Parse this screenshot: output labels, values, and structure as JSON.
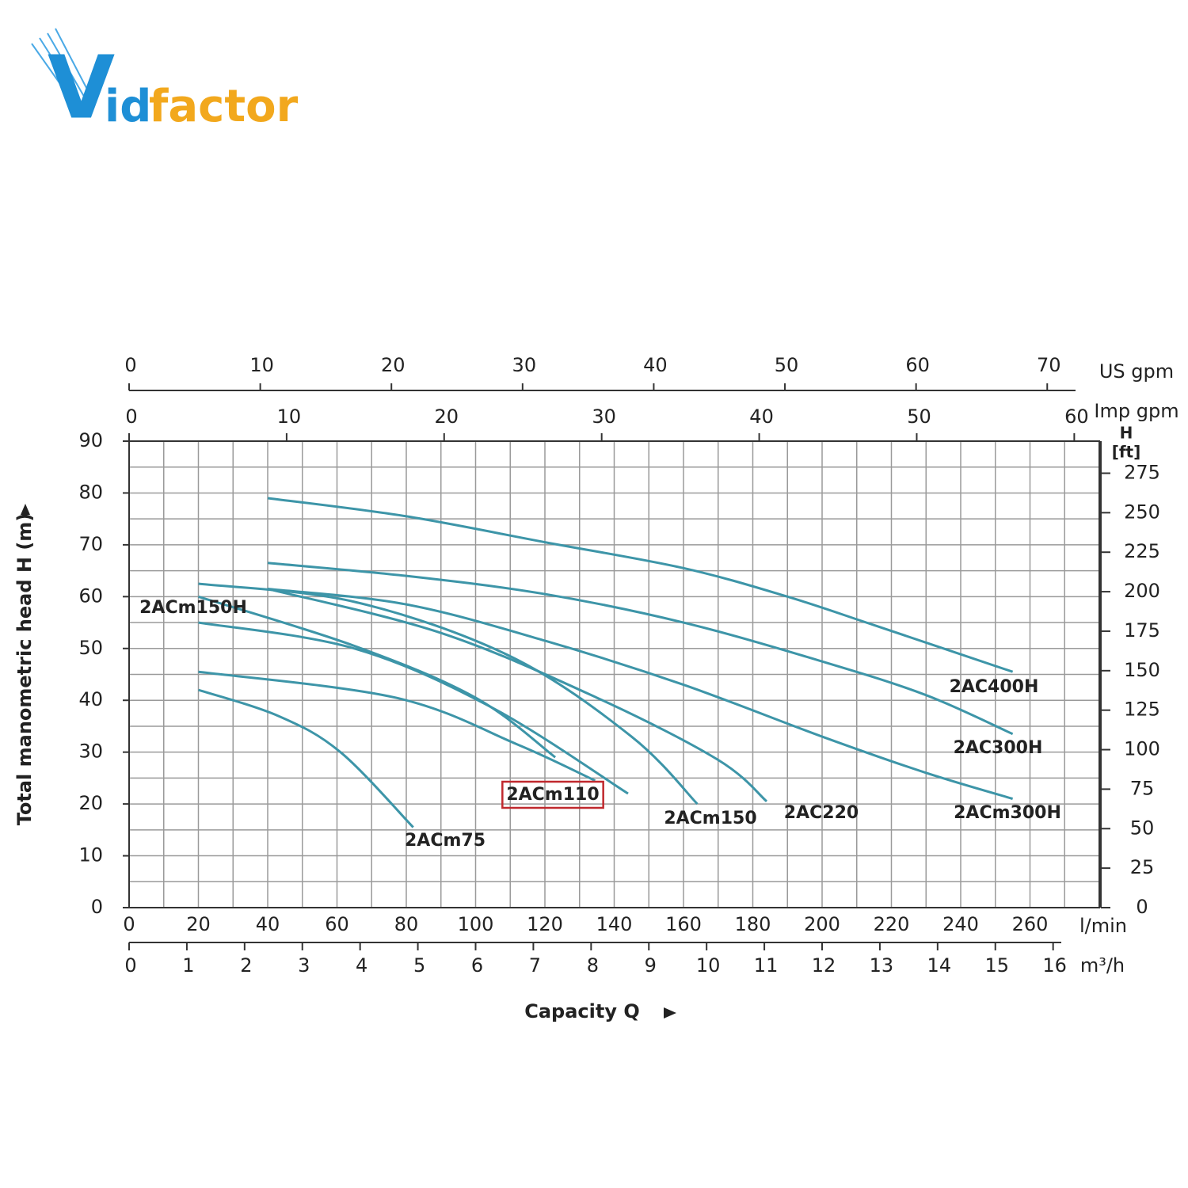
{
  "logo": [
    "V",
    "id",
    "factor"
  ],
  "chart_data": {
    "type": "line",
    "y_title": "Total manometric head H (m)",
    "x_title": "Capacity Q",
    "x_unit": "l/min",
    "xlim": [
      0,
      280
    ],
    "xticks": [
      0,
      20,
      40,
      60,
      80,
      100,
      120,
      140,
      160,
      180,
      200,
      220,
      240,
      260
    ],
    "xgrid": [
      0,
      10,
      20,
      30,
      40,
      50,
      60,
      70,
      80,
      90,
      100,
      110,
      120,
      130,
      140,
      150,
      160,
      170,
      180,
      190,
      200,
      210,
      220,
      230,
      240,
      250,
      260,
      270,
      280
    ],
    "ylim": [
      0,
      90
    ],
    "yticks": [
      0,
      10,
      20,
      30,
      40,
      50,
      60,
      70,
      80,
      90
    ],
    "ygrid": [
      0,
      5,
      10,
      15,
      20,
      25,
      30,
      35,
      40,
      45,
      50,
      55,
      60,
      65,
      70,
      75,
      80,
      85,
      90
    ],
    "y2_title": [
      "H",
      "[ft]"
    ],
    "y2lim": [
      0,
      295.3
    ],
    "y2ticks": [
      0,
      25,
      50,
      75,
      100,
      125,
      150,
      175,
      200,
      225,
      250,
      275
    ],
    "x2_axes": [
      {
        "unit": "US gpm",
        "xlim": [
          0,
          73.97
        ],
        "xticks": [
          0,
          10,
          20,
          30,
          40,
          50,
          60,
          70
        ]
      },
      {
        "unit": "Imp gpm",
        "xlim": [
          0,
          61.59
        ],
        "xticks": [
          0,
          10,
          20,
          30,
          40,
          50,
          60
        ]
      },
      {
        "unit": "m³/h",
        "xlim": [
          0,
          16.8
        ],
        "xticks": [
          0,
          1,
          2,
          3,
          4,
          5,
          6,
          7,
          8,
          9,
          10,
          11,
          12,
          13,
          14,
          15,
          16
        ]
      }
    ],
    "curve_color": "#3d95a8",
    "highlight_color": "#c0282d",
    "grid": true,
    "series": [
      {
        "name": "2AC400H",
        "x": [
          40,
          80,
          120,
          160,
          190,
          215,
          255
        ],
        "values": [
          79,
          75.5,
          70.5,
          65.5,
          60,
          54.5,
          45.5
        ]
      },
      {
        "name": "2AC300H",
        "x": [
          40,
          80,
          120,
          160,
          200,
          230,
          255
        ],
        "values": [
          66.5,
          64,
          60.5,
          55,
          47.5,
          41,
          33.5
        ]
      },
      {
        "name": "2ACm300H",
        "x": [
          40,
          80,
          120,
          160,
          200,
          230,
          255
        ],
        "values": [
          61.5,
          58.5,
          51.5,
          43,
          33,
          26,
          21
        ]
      },
      {
        "name": "2AC220",
        "x": [
          40,
          90,
          135,
          170,
          184
        ],
        "values": [
          61.5,
          53,
          40.5,
          28.5,
          20.5
        ]
      },
      {
        "name": "2ACm150",
        "x": [
          20,
          65,
          110,
          145,
          164
        ],
        "values": [
          62.5,
          59,
          48.5,
          33,
          20
        ]
      },
      {
        "name": "2ACm150H",
        "x": [
          20,
          65,
          100,
          123
        ],
        "values": [
          60,
          50.5,
          40.5,
          29
        ]
      },
      {
        "x": [
          20,
          65,
          105,
          144
        ],
        "values": [
          55,
          50,
          38.5,
          22
        ]
      },
      {
        "name": "2ACm110",
        "highlight": true,
        "x": [
          20,
          77,
          112,
          134.5
        ],
        "values": [
          45.5,
          40.5,
          31.5,
          24.5
        ]
      },
      {
        "name": "2ACm75",
        "x": [
          20,
          43,
          61,
          82
        ],
        "values": [
          42,
          37,
          30,
          15.5
        ]
      }
    ]
  }
}
